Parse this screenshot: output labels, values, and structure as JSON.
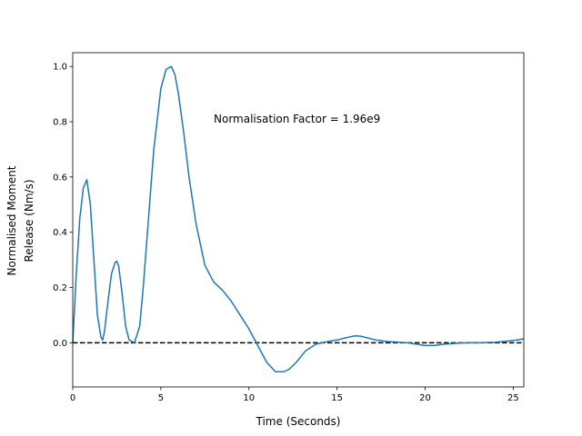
{
  "chart_data": {
    "type": "line",
    "xlabel": "Time (Seconds)",
    "ylabel": [
      "Normalised Moment",
      "Release (Nm/s)"
    ],
    "xlim": [
      0,
      25.6
    ],
    "ylim": [
      -0.16,
      1.05
    ],
    "xticks": [
      0,
      5,
      10,
      15,
      20,
      25
    ],
    "yticks": [
      0.0,
      0.2,
      0.4,
      0.6,
      0.8,
      1.0
    ],
    "xtick_labels": [
      "0",
      "5",
      "10",
      "15",
      "20",
      "25"
    ],
    "ytick_labels": [
      "0.0",
      "0.2",
      "0.4",
      "0.6",
      "0.8",
      "1.0"
    ],
    "annotation": {
      "text": "Normalisation Factor = 1.96e9",
      "x": 8.0,
      "y": 0.81
    },
    "grid": false,
    "series": [
      {
        "color": "#1f77b4",
        "x": [
          0,
          0.2,
          0.4,
          0.6,
          0.8,
          1.0,
          1.2,
          1.4,
          1.6,
          1.7,
          1.8,
          2.0,
          2.2,
          2.4,
          2.5,
          2.6,
          2.8,
          3.0,
          3.2,
          3.5,
          3.8,
          4.0,
          4.3,
          4.6,
          5.0,
          5.3,
          5.6,
          5.8,
          6.0,
          6.3,
          6.6,
          7.0,
          7.5,
          8.0,
          8.5,
          9.0,
          9.5,
          10.0,
          10.5,
          11.0,
          11.5,
          12.0,
          12.3,
          12.7,
          13.2,
          13.8,
          14.5,
          15.0,
          15.5,
          16.0,
          16.3,
          16.7,
          17.2,
          17.8,
          18.5,
          19.0,
          19.5,
          20.0,
          20.5,
          21.0,
          21.5,
          22.0,
          22.5,
          23.0,
          24.0,
          25.0,
          25.6
        ],
        "y": [
          0.0,
          0.25,
          0.45,
          0.56,
          0.59,
          0.5,
          0.3,
          0.1,
          0.02,
          0.01,
          0.04,
          0.15,
          0.25,
          0.29,
          0.295,
          0.28,
          0.18,
          0.06,
          0.01,
          0.0,
          0.06,
          0.2,
          0.45,
          0.7,
          0.92,
          0.99,
          1.0,
          0.97,
          0.9,
          0.76,
          0.6,
          0.43,
          0.28,
          0.22,
          0.19,
          0.15,
          0.1,
          0.05,
          -0.01,
          -0.07,
          -0.105,
          -0.105,
          -0.095,
          -0.07,
          -0.03,
          -0.005,
          0.005,
          0.01,
          0.018,
          0.025,
          0.024,
          0.018,
          0.01,
          0.005,
          0.002,
          0.0,
          -0.005,
          -0.01,
          -0.01,
          -0.006,
          -0.003,
          -0.001,
          0.0,
          0.0,
          0.002,
          0.008,
          0.014
        ]
      }
    ],
    "reference_line": {
      "y": 0.0,
      "style": "dashed",
      "color": "#000000"
    }
  }
}
